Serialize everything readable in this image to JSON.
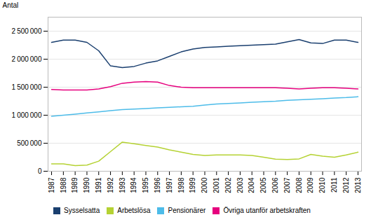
{
  "chart_data": {
    "type": "line",
    "ylabel": "Antal",
    "x": [
      1987,
      1988,
      1989,
      1990,
      1991,
      1992,
      1993,
      1994,
      1995,
      1996,
      1997,
      1998,
      1999,
      2000,
      2001,
      2002,
      2003,
      2004,
      2005,
      2006,
      2007,
      2008,
      2009,
      2010,
      2011,
      2012,
      2013
    ],
    "series": [
      {
        "name": "Sysselsatta",
        "color": "#1a3f6f",
        "values": [
          2300000,
          2340000,
          2340000,
          2300000,
          2150000,
          1880000,
          1850000,
          1870000,
          1930000,
          1970000,
          2050000,
          2130000,
          2180000,
          2210000,
          2220000,
          2230000,
          2240000,
          2250000,
          2260000,
          2270000,
          2310000,
          2350000,
          2290000,
          2280000,
          2340000,
          2340000,
          2300000
        ]
      },
      {
        "name": "Arbetslösa",
        "color": "#b5d233",
        "values": [
          130000,
          130000,
          100000,
          110000,
          180000,
          350000,
          520000,
          490000,
          460000,
          430000,
          380000,
          340000,
          300000,
          280000,
          290000,
          290000,
          290000,
          280000,
          250000,
          215000,
          210000,
          220000,
          300000,
          270000,
          250000,
          290000,
          340000
        ]
      },
      {
        "name": "Pensionärer",
        "color": "#4dbce9",
        "values": [
          980000,
          1000000,
          1020000,
          1040000,
          1060000,
          1080000,
          1100000,
          1110000,
          1120000,
          1130000,
          1140000,
          1150000,
          1160000,
          1180000,
          1200000,
          1210000,
          1220000,
          1230000,
          1240000,
          1250000,
          1265000,
          1275000,
          1285000,
          1295000,
          1305000,
          1315000,
          1330000
        ]
      },
      {
        "name": "Övriga utanför arbetskraften",
        "color": "#e6007e",
        "values": [
          1460000,
          1450000,
          1450000,
          1450000,
          1470000,
          1510000,
          1570000,
          1590000,
          1600000,
          1590000,
          1530000,
          1500000,
          1490000,
          1490000,
          1490000,
          1490000,
          1490000,
          1490000,
          1490000,
          1490000,
          1480000,
          1470000,
          1480000,
          1490000,
          1490000,
          1480000,
          1470000
        ]
      }
    ],
    "xlim": [
      1986.7,
      2013.3
    ],
    "xticks": [
      1987,
      1988,
      1989,
      1990,
      1991,
      1992,
      1993,
      1994,
      1995,
      1996,
      1997,
      1998,
      1999,
      2000,
      2001,
      2002,
      2003,
      2004,
      2005,
      2006,
      2007,
      2008,
      2009,
      2010,
      2011,
      2012,
      2013
    ],
    "ylim": [
      0,
      2750000
    ],
    "yticks": [
      0,
      {
        "value": 500000,
        "label": "500 000"
      },
      {
        "value": 1000000,
        "label": "1 000 000"
      },
      {
        "value": 1500000,
        "label": "1 500 000"
      },
      {
        "value": 2000000,
        "label": "2 000 000"
      },
      {
        "value": 2500000,
        "label": "2 500 000"
      }
    ],
    "grid": "y",
    "legend": "bottom"
  }
}
